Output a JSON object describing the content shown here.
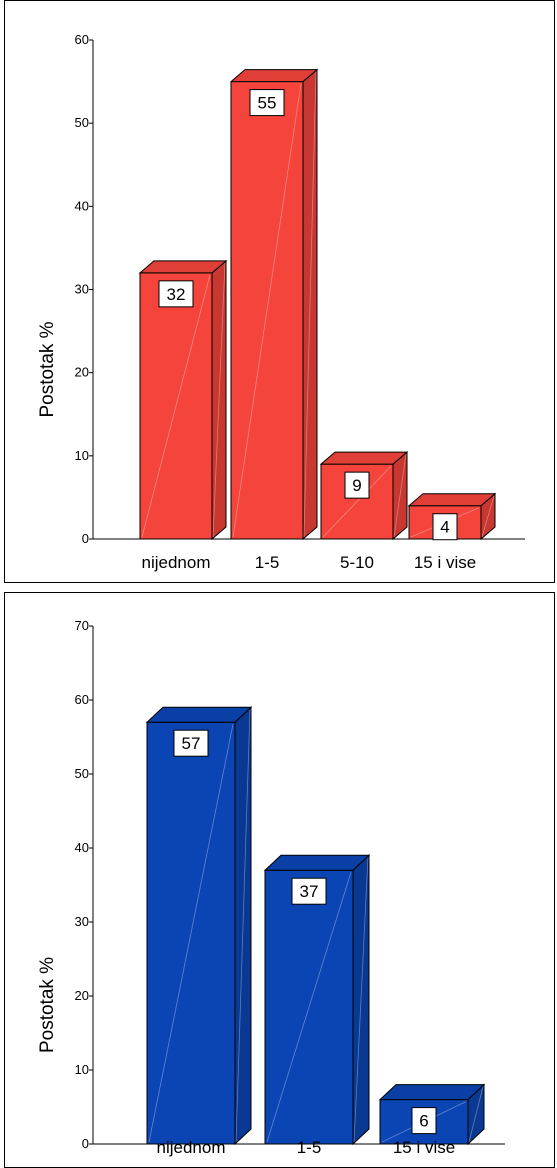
{
  "chart_data": [
    {
      "type": "bar",
      "ylabel": "Postotak %",
      "ylim": [
        0,
        60
      ],
      "yticks": [
        0,
        10,
        20,
        30,
        40,
        50,
        60
      ],
      "categories": [
        "nijednom",
        "1-5",
        "5-10",
        "15 i vise"
      ],
      "values": [
        32,
        55,
        9,
        4
      ],
      "data_labels": [
        "32",
        "55",
        "9",
        "4"
      ],
      "color": "#f4443c",
      "style": "3d"
    },
    {
      "type": "bar",
      "ylabel": "Postotak %",
      "ylim": [
        0,
        70
      ],
      "yticks": [
        0,
        10,
        20,
        30,
        40,
        50,
        60,
        70
      ],
      "categories": [
        "nijednom",
        "1-5",
        "15 i vise"
      ],
      "values": [
        57,
        37,
        6
      ],
      "data_labels": [
        "57",
        "37",
        "6"
      ],
      "color": "#0b45b3",
      "style": "3d"
    }
  ]
}
